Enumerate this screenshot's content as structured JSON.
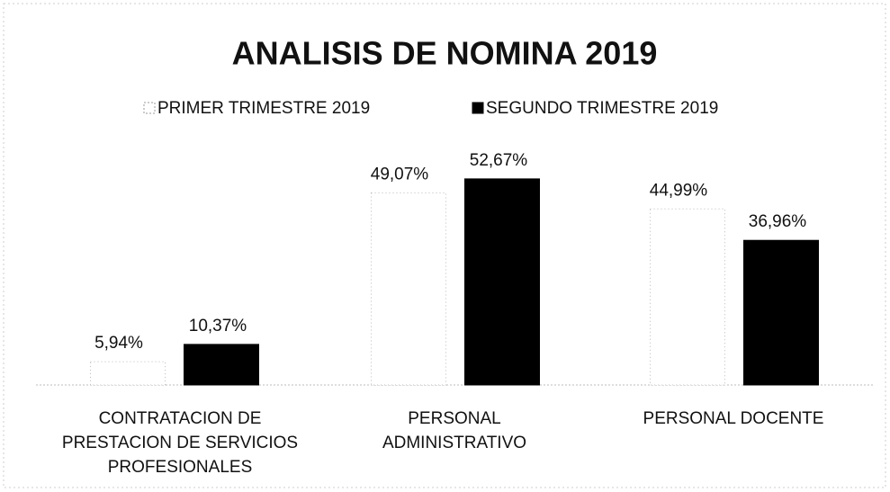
{
  "chart_data": {
    "type": "bar",
    "title": "ANALISIS DE NOMINA 2019",
    "categories": [
      "CONTRATACION DE PRESTACION DE SERVICIOS PROFESIONALES",
      "PERSONAL ADMINISTRATIVO",
      "PERSONAL DOCENTE"
    ],
    "series": [
      {
        "name": "PRIMER TRIMESTRE 2019",
        "color": "#ffffff",
        "values": [
          5.94,
          49.07,
          44.99
        ],
        "value_labels": [
          "5,94%",
          "49,07%",
          "44,99%"
        ]
      },
      {
        "name": "SEGUNDO TRIMESTRE 2019",
        "color": "#000000",
        "values": [
          10.37,
          52.67,
          36.96
        ],
        "value_labels": [
          "10,37%",
          "52,67%",
          "36,96%"
        ]
      }
    ],
    "legend": "top"
  }
}
